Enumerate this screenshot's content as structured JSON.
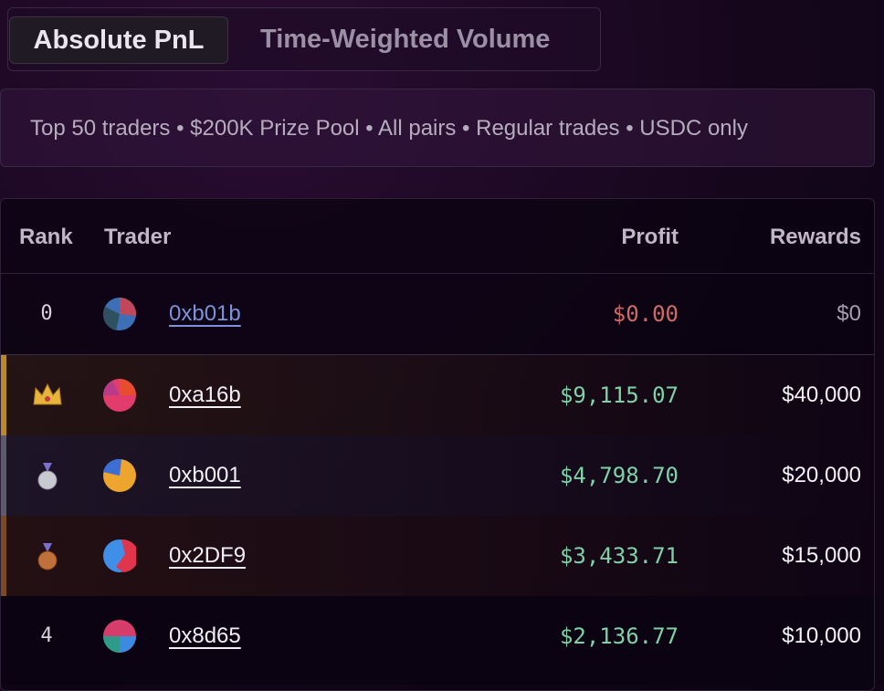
{
  "tabs": [
    "Absolute PnL",
    "Time-Weighted Volume"
  ],
  "description": "Top 50 traders • $200K Prize Pool • All pairs • Regular trades • USDC only",
  "table": {
    "headers": [
      "Rank",
      "Trader",
      "Profit",
      "Rewards"
    ],
    "rows": [
      [
        "0",
        "0xb01b",
        "$0.00",
        "$0"
      ],
      [
        null,
        "0xa16b",
        "$9,115.07",
        "$40,000"
      ],
      [
        null,
        "0xb001",
        "$4,798.70",
        "$20,000"
      ],
      [
        null,
        "0x2DF9",
        "$3,433.71",
        "$15,000"
      ],
      [
        "4",
        "0x8d65",
        "$2,136.77",
        "$10,000"
      ]
    ]
  }
}
